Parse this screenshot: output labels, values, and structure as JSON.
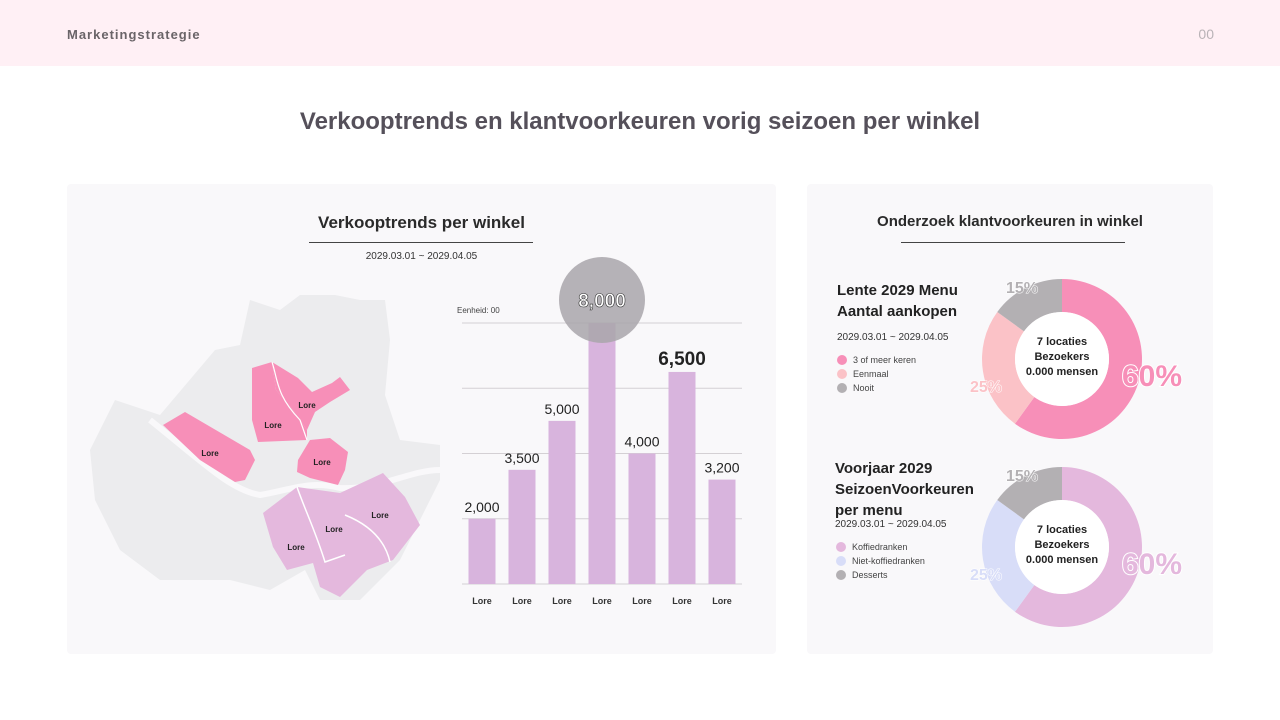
{
  "header": {
    "brand": "Marketingstrategie",
    "page_number": "00"
  },
  "title": "Verkooptrends en klantvoorkeuren vorig seizoen per winkel",
  "left_panel": {
    "title": "Verkooptrends per winkel",
    "date_range": "2029.03.01 ~ 2029.04.05",
    "map_labels": [
      "Lore",
      "Lore",
      "Lore",
      "Lore",
      "Lore",
      "Lore",
      "Lore"
    ],
    "colors": {
      "highlight": "#f78fb8",
      "secondary": "#e4b8dd",
      "base": "#ececee"
    }
  },
  "right_panel": {
    "title": "Onderzoek klantvoorkeuren in winkel"
  },
  "chart_data": [
    {
      "type": "bar",
      "unit_label": "Eenheid: 00",
      "categories": [
        "Lore",
        "Lore",
        "Lore",
        "Lore",
        "Lore",
        "Lore",
        "Lore"
      ],
      "values": [
        2000,
        3500,
        5000,
        8000,
        4000,
        6500,
        3200
      ],
      "value_labels": [
        "2,000",
        "3,500",
        "5,000",
        "8,000",
        "4,000",
        "6,500",
        "3,200"
      ],
      "highlight_index": 3,
      "ylim": [
        0,
        8000
      ],
      "grid": true,
      "bar_color": "#d8b4dd",
      "highlight_color": "#a9a6aa"
    },
    {
      "type": "pie",
      "title": "Lente 2029 Menu Aantal aankopen",
      "title_lines": [
        "Lente 2029 Menu",
        "Aantal aankopen"
      ],
      "date_range": "2029.03.01 ~ 2029.04.05",
      "center_lines": [
        "7 locaties",
        "Bezoekers",
        "0.000 mensen"
      ],
      "slices": [
        {
          "name": "3 of meer keren",
          "value": 60,
          "label": "60%",
          "color": "#f78fb8"
        },
        {
          "name": "Eenmaal",
          "value": 25,
          "label": "25%",
          "color": "#fbc2c7"
        },
        {
          "name": "Nooit",
          "value": 15,
          "label": "15%",
          "color": "#b3b0b3"
        }
      ]
    },
    {
      "type": "pie",
      "title": "Voorjaar 2029 SeizoenVoorkeuren per menu",
      "title_lines": [
        "Voorjaar 2029",
        "SeizoenVoorkeuren",
        "per menu"
      ],
      "date_range": "2029.03.01 ~ 2029.04.05",
      "center_lines": [
        "7 locaties",
        "Bezoekers",
        "0.000 mensen"
      ],
      "slices": [
        {
          "name": "Koffiedranken",
          "value": 60,
          "label": "60%",
          "color": "#e4b8dd"
        },
        {
          "name": "Niet-koffiedranken",
          "value": 25,
          "label": "25%",
          "color": "#d8ddf8"
        },
        {
          "name": "Desserts",
          "value": 15,
          "label": "15%",
          "color": "#b3b0b3"
        }
      ]
    }
  ]
}
